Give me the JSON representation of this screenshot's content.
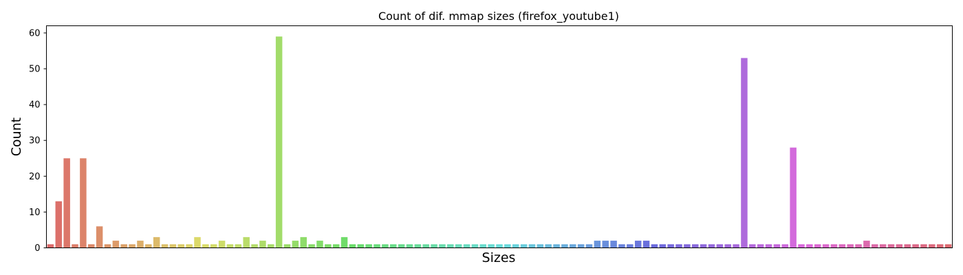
{
  "chart_data": {
    "type": "bar",
    "title": "Count of dif. mmap sizes (firefox_youtube1)",
    "xlabel": "Sizes",
    "ylabel": "Count",
    "ylim": [
      0,
      62
    ],
    "yticks": [
      "0",
      "10",
      "20",
      "30",
      "40",
      "50",
      "60"
    ],
    "grid": false,
    "x_tick_labels_shown": false,
    "values": [
      1,
      13,
      25,
      1,
      25,
      1,
      6,
      1,
      2,
      1,
      1,
      2,
      1,
      3,
      1,
      1,
      1,
      1,
      3,
      1,
      1,
      2,
      1,
      1,
      3,
      1,
      2,
      1,
      59,
      1,
      2,
      3,
      1,
      2,
      1,
      1,
      3,
      1,
      1,
      1,
      1,
      1,
      1,
      1,
      1,
      1,
      1,
      1,
      1,
      1,
      1,
      1,
      1,
      1,
      1,
      1,
      1,
      1,
      1,
      1,
      1,
      1,
      1,
      1,
      1,
      1,
      1,
      2,
      2,
      2,
      1,
      1,
      2,
      2,
      1,
      1,
      1,
      1,
      1,
      1,
      1,
      1,
      1,
      1,
      1,
      53,
      1,
      1,
      1,
      1,
      1,
      28,
      1,
      1,
      1,
      1,
      1,
      1,
      1,
      1,
      2,
      1,
      1,
      1,
      1,
      1,
      1,
      1,
      1,
      1,
      1
    ]
  }
}
